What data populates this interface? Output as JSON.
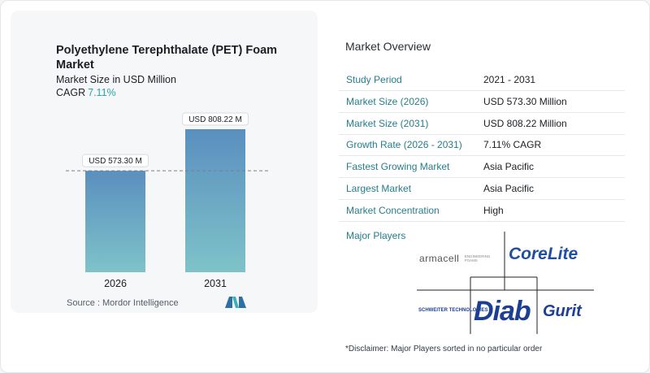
{
  "title": "Polyethylene Terephthalate (PET) Foam Market",
  "subtitle": "Market Size in USD Million",
  "cagr_label": "CAGR",
  "cagr_value": "7.11%",
  "source": "Source :  Mordor Intelligence",
  "chart_data": {
    "type": "bar",
    "categories": [
      "2026",
      "2031"
    ],
    "values": [
      573.3,
      808.22
    ],
    "data_labels": [
      "USD 573.30 M",
      "USD 808.22 M"
    ],
    "title": "Polyethylene Terephthalate (PET) Foam Market",
    "subtitle": "Market Size in USD Million",
    "ylim": [
      0,
      808.22
    ],
    "grid": false,
    "reference_line": "dashed line at the 2026 value",
    "colors": {
      "bar_top": "#5a8fbf",
      "bar_bottom": "#7ec3c9"
    }
  },
  "overview": {
    "title": "Market Overview",
    "rows": [
      {
        "key": "Study Period",
        "value": "2021 - 2031"
      },
      {
        "key": "Market Size (2026)",
        "value": "USD 573.30 Million"
      },
      {
        "key": "Market Size (2031)",
        "value": "USD 808.22 Million"
      },
      {
        "key": "Growth Rate (2026 - 2031)",
        "value": "7.11% CAGR"
      },
      {
        "key": "Fastest Growing Market",
        "value": "Asia Pacific"
      },
      {
        "key": "Largest Market",
        "value": "Asia Pacific"
      },
      {
        "key": "Market Concentration",
        "value": "High"
      }
    ]
  },
  "players": {
    "label": "Major Players",
    "logos": {
      "armacell": "armacell",
      "armacell_tag": "ENGINEERING FOAMS",
      "corelite": "CoreLite",
      "schweiter": "SCHWEITER TECHNOLOGIES",
      "diab": "Diab",
      "gurit": "Gurit"
    }
  },
  "disclaimer": "*Disclaimer: Major Players sorted in no particular order",
  "colors": {
    "accent": "#267d8c",
    "cagr": "#2aa3b0",
    "corelite": "#1f4fa3",
    "diab": "#1c3f94"
  }
}
